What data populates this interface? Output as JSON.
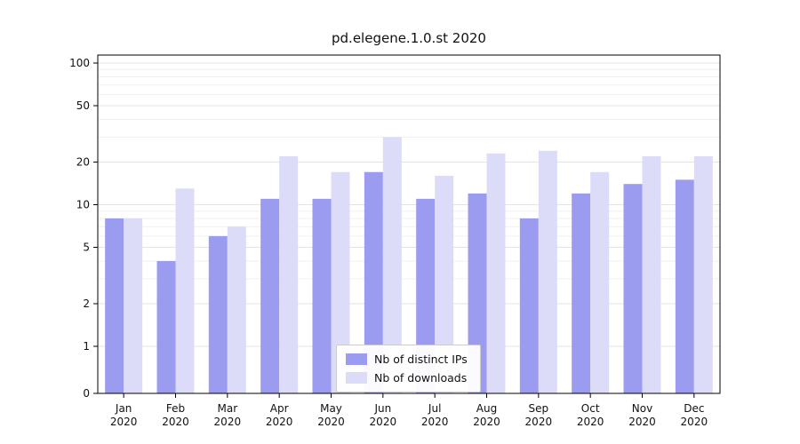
{
  "chart_data": {
    "type": "bar",
    "title": "pd.elegene.1.0.st 2020",
    "categories": [
      "Jan 2020",
      "Feb 2020",
      "Mar 2020",
      "Apr 2020",
      "May 2020",
      "Jun 2020",
      "Jul 2020",
      "Aug 2020",
      "Sep 2020",
      "Oct 2020",
      "Nov 2020",
      "Dec 2020"
    ],
    "series": [
      {
        "name": "Nb of distinct IPs",
        "color": "#9b9bef",
        "values": [
          8,
          4,
          6,
          11,
          11,
          17,
          11,
          12,
          8,
          12,
          14,
          15
        ]
      },
      {
        "name": "Nb of downloads",
        "color": "#dcdcf9",
        "values": [
          8,
          13,
          7,
          22,
          17,
          30,
          16,
          23,
          24,
          17,
          22,
          22
        ]
      }
    ],
    "y_ticks": [
      0,
      1,
      2,
      5,
      10,
      20,
      50,
      100
    ],
    "y_scale": "log",
    "ylim": [
      0,
      100
    ],
    "xlabel": "",
    "ylabel": "",
    "grid": true,
    "legend_position": "lower center",
    "colors": {
      "major_grid": "#e3e3e3",
      "minor_grid": "#f0f0f0",
      "spine": "#000000"
    }
  }
}
